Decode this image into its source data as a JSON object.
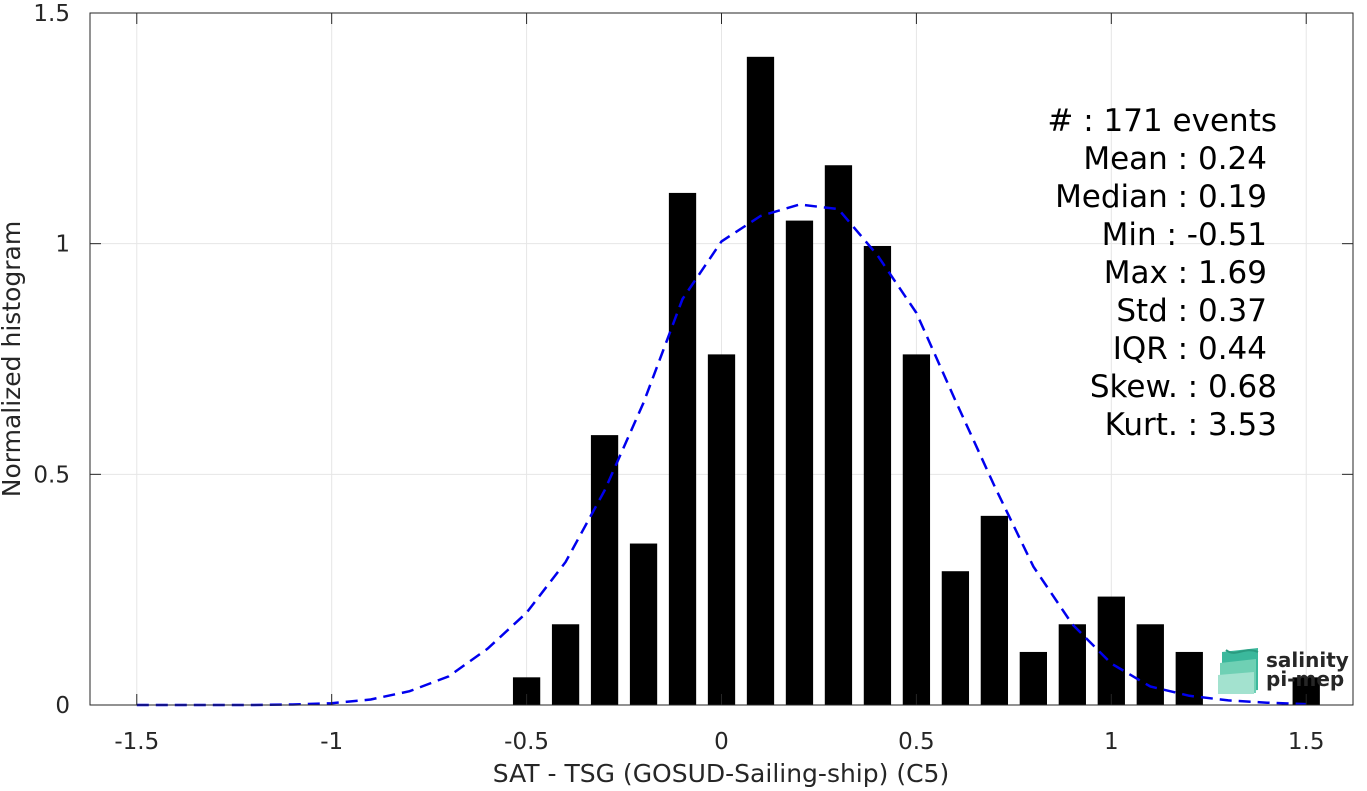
{
  "chart_data": {
    "type": "bar",
    "xlabel": "SAT - TSG (GOSUD-Sailing-ship) (C5)",
    "ylabel": "Normalized histogram",
    "xlim": [
      -1.62,
      1.62
    ],
    "ylim": [
      0,
      1.5
    ],
    "grid": true,
    "x_ticks": [
      -1.5,
      -1,
      -0.5,
      0,
      0.5,
      1,
      1.5
    ],
    "x_tick_labels": [
      "-1.5",
      "-1",
      "-0.5",
      "0",
      "0.5",
      "1",
      "1.5"
    ],
    "y_ticks": [
      0,
      0.5,
      1,
      1.5
    ],
    "y_tick_labels": [
      "0",
      "0.5",
      "1",
      "1.5"
    ],
    "bar_width": 0.07,
    "bins": [
      {
        "x": -0.5,
        "y": 0.06
      },
      {
        "x": -0.4,
        "y": 0.175
      },
      {
        "x": -0.3,
        "y": 0.585
      },
      {
        "x": -0.2,
        "y": 0.35
      },
      {
        "x": -0.1,
        "y": 1.11
      },
      {
        "x": 0.0,
        "y": 0.76
      },
      {
        "x": 0.1,
        "y": 1.405
      },
      {
        "x": 0.2,
        "y": 1.05
      },
      {
        "x": 0.3,
        "y": 1.17
      },
      {
        "x": 0.4,
        "y": 0.995
      },
      {
        "x": 0.5,
        "y": 0.76
      },
      {
        "x": 0.6,
        "y": 0.29
      },
      {
        "x": 0.7,
        "y": 0.41
      },
      {
        "x": 0.8,
        "y": 0.115
      },
      {
        "x": 0.9,
        "y": 0.175
      },
      {
        "x": 1.0,
        "y": 0.235
      },
      {
        "x": 1.1,
        "y": 0.175
      },
      {
        "x": 1.2,
        "y": 0.115
      },
      {
        "x": 1.5,
        "y": 0.06
      }
    ],
    "fit_curve": {
      "style": "dashed",
      "color": "#0000ee",
      "x": [
        -1.5,
        -1.4,
        -1.3,
        -1.2,
        -1.1,
        -1.0,
        -0.9,
        -0.8,
        -0.7,
        -0.6,
        -0.5,
        -0.4,
        -0.3,
        -0.2,
        -0.1,
        0.0,
        0.1,
        0.2,
        0.3,
        0.4,
        0.5,
        0.6,
        0.7,
        0.8,
        0.9,
        1.0,
        1.1,
        1.2,
        1.3,
        1.4,
        1.5
      ],
      "y": [
        0.0,
        0.0,
        0.0,
        0.0,
        0.001,
        0.004,
        0.012,
        0.03,
        0.062,
        0.122,
        0.2,
        0.31,
        0.465,
        0.655,
        0.88,
        1.005,
        1.06,
        1.085,
        1.075,
        0.975,
        0.85,
        0.66,
        0.475,
        0.3,
        0.175,
        0.09,
        0.04,
        0.02,
        0.01,
        0.005,
        0.002
      ]
    },
    "stats": [
      {
        "label": "#  : 171 events"
      },
      {
        "label": "Mean : 0.24"
      },
      {
        "label": "Median : 0.19"
      },
      {
        "label": "Min : -0.51"
      },
      {
        "label": "Max : 1.69"
      },
      {
        "label": "Std : 0.37"
      },
      {
        "label": "IQR : 0.44"
      },
      {
        "label": "Skew. : 0.68"
      },
      {
        "label": "Kurt. : 3.53"
      }
    ]
  },
  "logo": {
    "line1": "salinity",
    "line2": "pi-mep",
    "color": "#1aa88c"
  },
  "colors": {
    "bar": "#000000",
    "grid": "#e6e6e6",
    "axis": "#262626"
  }
}
